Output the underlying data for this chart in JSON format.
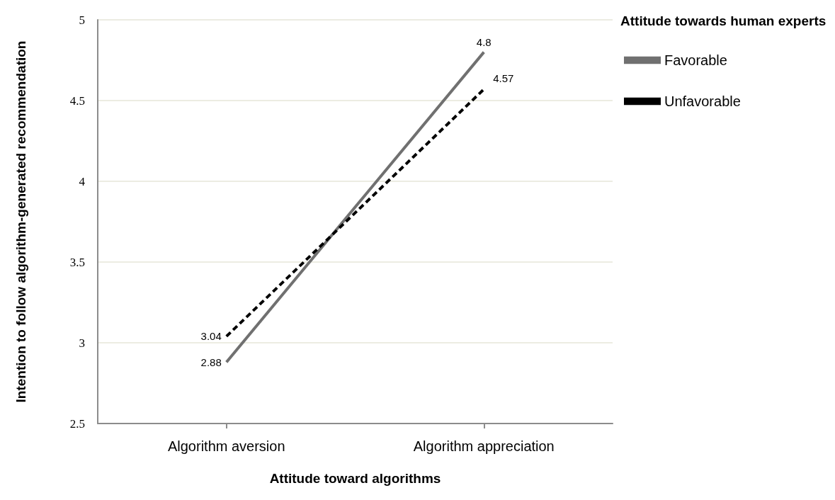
{
  "chart_data": {
    "type": "line",
    "xlabel": "Attitude toward algorithms",
    "ylabel": "Intention to follow algorithm-generated recommendation",
    "legend_title": "Attitude towards human experts",
    "categories": [
      "Algorithm aversion",
      "Algorithm appreciation"
    ],
    "series": [
      {
        "name": "Favorable",
        "color": "#707070",
        "values": [
          2.88,
          4.8
        ],
        "line_style": "solid"
      },
      {
        "name": "Unfavorable",
        "color": "#000000",
        "values": [
          3.04,
          4.57
        ],
        "line_style": "dashed"
      }
    ],
    "ylim": [
      2.5,
      5
    ],
    "yticks": [
      2.5,
      3,
      3.5,
      4,
      4.5,
      5
    ],
    "grid": "y",
    "legend": "top right",
    "marker": "none",
    "data_labels": true
  }
}
